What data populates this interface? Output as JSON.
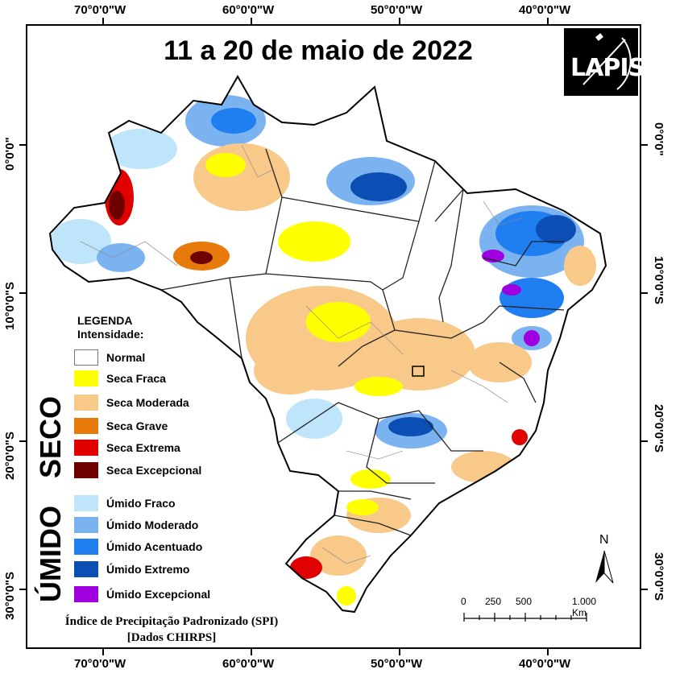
{
  "title": "11 a 20 de maio de 2022",
  "logo": {
    "text": "LAPIS"
  },
  "longitude_labels": [
    "70°0'0\"W",
    "60°0'0\"W",
    "50°0'0\"W",
    "40°0'0\"W"
  ],
  "latitude_labels": [
    "0°0'0\"",
    "10°0'0\"S",
    "20°0'0\"S",
    "30°0'0\"S"
  ],
  "legend": {
    "title": "LEGENDA",
    "subtitle": "Intensidade:",
    "normal": {
      "label": "Normal",
      "color": "#ffffff"
    },
    "seco": {
      "label": "SECO",
      "items": [
        {
          "label": "Seca Fraca",
          "color": "#ffff00"
        },
        {
          "label": "Seca Moderada",
          "color": "#f9c98a"
        },
        {
          "label": "Seca Grave",
          "color": "#e87a0c"
        },
        {
          "label": "Seca Extrema",
          "color": "#e00000"
        },
        {
          "label": "Seca Excepcional",
          "color": "#6e0000"
        }
      ]
    },
    "umido": {
      "label": "ÚMIDO",
      "items": [
        {
          "label": "Úmido Fraco",
          "color": "#bfe5fb"
        },
        {
          "label": "Úmido Moderado",
          "color": "#7ab3f0"
        },
        {
          "label": "Úmido Acentuado",
          "color": "#1f7ef0"
        },
        {
          "label": "Úmido Extremo",
          "color": "#0b4fb4"
        },
        {
          "label": "Úmido Excepcional",
          "color": "#a000e0"
        }
      ]
    }
  },
  "source": {
    "line1": "Índice de Precipitação Padronizado (SPI)",
    "line2": "[Dados CHIRPS]"
  },
  "scale_bar": {
    "ticks": [
      "0",
      "250",
      "500",
      "1.000 Km"
    ]
  },
  "north_arrow": {
    "label": "N"
  }
}
